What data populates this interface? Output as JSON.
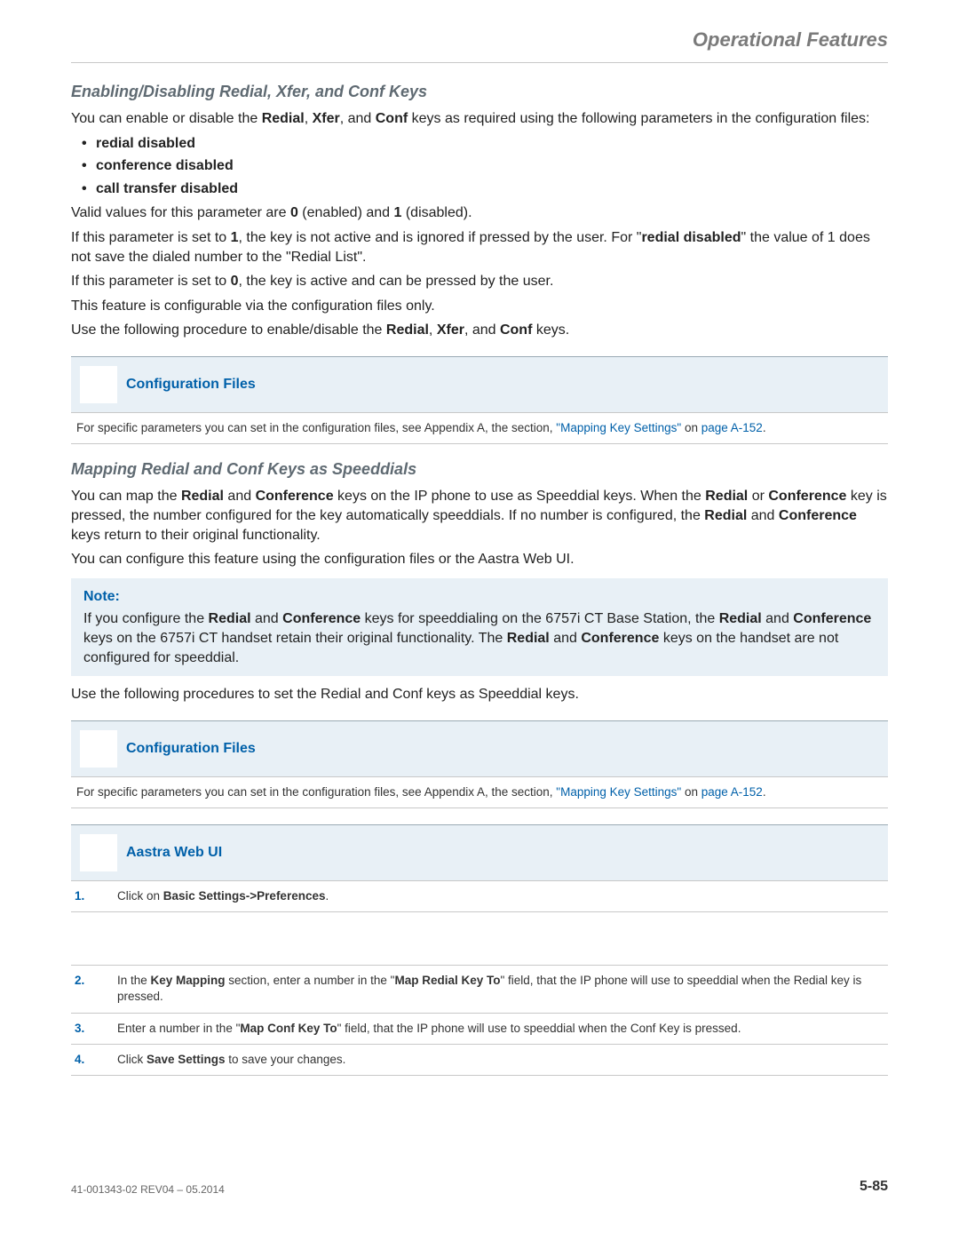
{
  "colors": {
    "accent": "#0060a9",
    "mutedHeading": "#5f6a72",
    "running": "#7a7a7a",
    "calloutBg": "#e8f0f6",
    "rule": "#c8c8c8",
    "ruleDark": "#9aaab4",
    "bodyText": "#222222"
  },
  "typography": {
    "bodySize": 16,
    "h3Size": 18,
    "runningSize": 22,
    "smallSize": 13.5,
    "footerSize": 12
  },
  "runningHeader": "Operational Features",
  "section1": {
    "title": "Enabling/Disabling Redial, Xfer, and Conf Keys",
    "intro_a": "You can enable or disable the ",
    "intro_b": ", ",
    "intro_c": ", and ",
    "intro_d": " keys as required using the following parameters in the configuration files:",
    "kw_redial": "Redial",
    "kw_xfer": "Xfer",
    "kw_conf": "Conf",
    "bullets": [
      "redial disabled",
      "conference disabled",
      "call transfer disabled"
    ],
    "valid_a": "Valid values for this parameter are ",
    "valid_b": " (enabled) and ",
    "valid_c": " (disabled).",
    "zero": "0",
    "one": "1",
    "set1_a": "If this parameter is set to ",
    "set1_b": ", the key is not active and is ignored if pressed by the user. For \"",
    "set1_c": "\" the value of 1 does not save the dialed number to the \"Redial List\".",
    "redial_disabled": "redial disabled",
    "set0_a": "If this parameter is set to ",
    "set0_b": ", the key is active and can be pressed by the user.",
    "featline": "This feature is configurable via the configuration files only.",
    "use_a": "Use the following procedure to enable/disable the ",
    "use_b": ", ",
    "use_c": ", and ",
    "use_d": " keys."
  },
  "configFilesHeader": "Configuration Files",
  "configFilesBody_a": "For specific parameters you can set in the configuration files, see Appendix A, the section, ",
  "configFilesLink": "\"Mapping Key Settings\"",
  "configFilesBody_b": " on ",
  "configFilesPage": "page A-152",
  "period": ".",
  "section2": {
    "title": "Mapping Redial and Conf Keys as Speeddials",
    "p1_a": "You can map the ",
    "p1_b": " and ",
    "p1_c": " keys on the IP phone to use as Speeddial keys. When the ",
    "p1_d": " or ",
    "p1_e": " key is pressed, the number configured for the key automatically speeddials. If no number is configured, the ",
    "p1_f": " and ",
    "p1_g": " keys return to their original functionality.",
    "kw_redial": "Redial",
    "kw_conference": "Conference",
    "p2": "You can configure this feature using the configuration files or the Aastra Web UI.",
    "noteTitle": "Note:",
    "note_a": "If you configure the ",
    "note_b": " and ",
    "note_c": " keys for speeddialing on the 6757i CT Base Station, the ",
    "note_d": " and ",
    "note_e": " keys on the 6757i CT handset retain their original functionality. The ",
    "note_f": " and ",
    "note_g": " keys on the handset are not configured for speeddial.",
    "p3": "Use the following procedures to set the Redial and Conf keys as Speeddial keys."
  },
  "webUIHeader": "Aastra Web UI",
  "steps": [
    {
      "n": "1.",
      "pre": "Click on ",
      "b": "Basic Settings->Preferences",
      "post": "."
    },
    {
      "n": "2.",
      "pre": "In the ",
      "b": "Key Mapping",
      "mid": " section, enter a number in the \"",
      "b2": "Map Redial Key To",
      "post": "\" field, that the IP phone will use to speeddial when the Redial key is pressed."
    },
    {
      "n": "3.",
      "pre": "Enter a number in the \"",
      "b": "Map Conf Key To",
      "post": "\" field, that the IP phone will use to speeddial when the Conf Key is pressed."
    },
    {
      "n": "4.",
      "pre": "Click ",
      "b": "Save Settings",
      "post": " to save your changes."
    }
  ],
  "footer": {
    "docid": "41-001343-02 REV04 – 05.2014",
    "page": "5-85"
  }
}
